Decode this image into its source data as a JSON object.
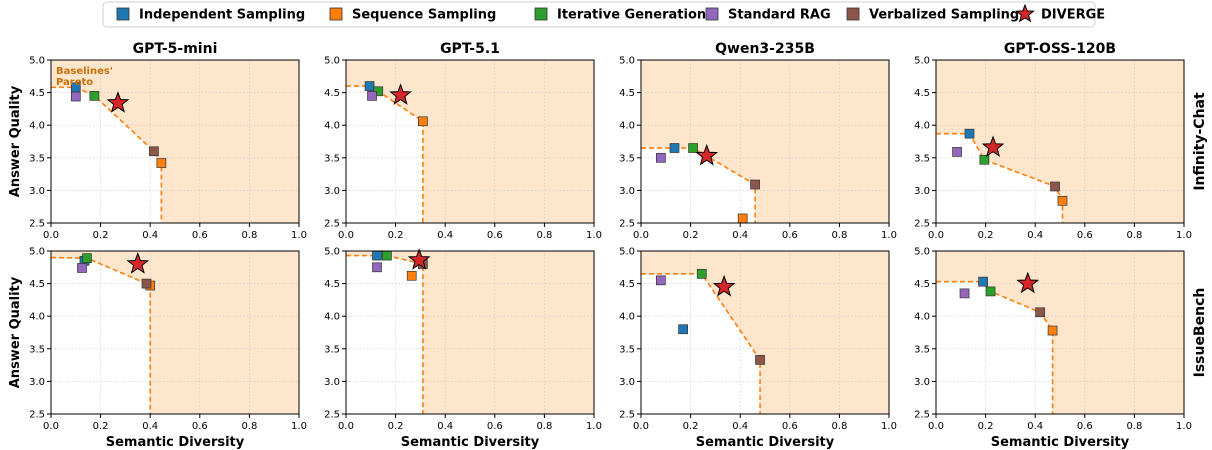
{
  "legend": {
    "items": [
      {
        "name": "Independent Sampling",
        "color": "#1f77b4",
        "marker": "square"
      },
      {
        "name": "Sequence Sampling",
        "color": "#ff7f0e",
        "marker": "square"
      },
      {
        "name": "Iterative Generation",
        "color": "#2ca02c",
        "marker": "square"
      },
      {
        "name": "Standard RAG",
        "color": "#9467bd",
        "marker": "square"
      },
      {
        "name": "Verbalized Sampling",
        "color": "#8c564b",
        "marker": "square"
      },
      {
        "name": "DIVERGE",
        "color": "#d62728",
        "marker": "star"
      }
    ]
  },
  "colors": {
    "pareto_line": "#ff7f0e",
    "pareto_fill": "#fde6cc",
    "grid": "#dddddd"
  },
  "columns": [
    "GPT-5-mini",
    "GPT-5.1",
    "Qwen3-235B",
    "GPT-OSS-120B"
  ],
  "rows": [
    "Infinity-Chat",
    "IssueBench"
  ],
  "xlabel": "Semantic Diversity",
  "ylabel": "Answer Quality",
  "annotation": "Baselines'\nPareto",
  "xticks": [
    "0.0",
    "0.2",
    "0.4",
    "0.6",
    "0.8",
    "1.0"
  ],
  "yticks": [
    "2.5",
    "3.0",
    "3.5",
    "4.0",
    "4.5",
    "5.0"
  ],
  "chart_data": [
    {
      "type": "scatter",
      "row": "Infinity-Chat",
      "model": "GPT-5-mini",
      "xlim": [
        0,
        1
      ],
      "ylim": [
        2.5,
        5.0
      ],
      "grid": true,
      "points": {
        "Independent Sampling": [
          0.1,
          4.58
        ],
        "Sequence Sampling": [
          0.445,
          3.42
        ],
        "Iterative Generation": [
          0.175,
          4.45
        ],
        "Standard RAG": [
          0.1,
          4.44
        ],
        "Verbalized Sampling": [
          0.415,
          3.6
        ],
        "DIVERGE": [
          0.27,
          4.34
        ]
      },
      "pareto": [
        [
          0,
          4.58
        ],
        [
          0.1,
          4.58
        ],
        [
          0.175,
          4.45
        ],
        [
          0.415,
          3.6
        ],
        [
          0.445,
          3.42
        ],
        [
          0.445,
          2.5
        ]
      ]
    },
    {
      "type": "scatter",
      "row": "Infinity-Chat",
      "model": "GPT-5.1",
      "xlim": [
        0,
        1
      ],
      "ylim": [
        2.5,
        5.0
      ],
      "grid": true,
      "points": {
        "Independent Sampling": [
          0.095,
          4.6
        ],
        "Sequence Sampling": [
          0.31,
          4.06
        ],
        "Iterative Generation": [
          0.13,
          4.52
        ],
        "Standard RAG": [
          0.105,
          4.45
        ],
        "Verbalized Sampling": null,
        "DIVERGE": [
          0.22,
          4.46
        ]
      },
      "pareto": [
        [
          0,
          4.6
        ],
        [
          0.095,
          4.6
        ],
        [
          0.13,
          4.52
        ],
        [
          0.31,
          4.06
        ],
        [
          0.31,
          2.5
        ]
      ]
    },
    {
      "type": "scatter",
      "row": "Infinity-Chat",
      "model": "Qwen3-235B",
      "xlim": [
        0,
        1
      ],
      "ylim": [
        2.5,
        5.0
      ],
      "grid": true,
      "points": {
        "Independent Sampling": [
          0.135,
          3.65
        ],
        "Sequence Sampling": [
          0.41,
          2.57
        ],
        "Iterative Generation": [
          0.21,
          3.65
        ],
        "Standard RAG": [
          0.08,
          3.5
        ],
        "Verbalized Sampling": [
          0.46,
          3.09
        ],
        "DIVERGE": [
          0.265,
          3.53
        ]
      },
      "pareto": [
        [
          0,
          3.65
        ],
        [
          0.21,
          3.65
        ],
        [
          0.46,
          3.09
        ],
        [
          0.46,
          2.5
        ]
      ]
    },
    {
      "type": "scatter",
      "row": "Infinity-Chat",
      "model": "GPT-OSS-120B",
      "xlim": [
        0,
        1
      ],
      "ylim": [
        2.5,
        5.0
      ],
      "grid": true,
      "points": {
        "Independent Sampling": [
          0.135,
          3.87
        ],
        "Sequence Sampling": [
          0.51,
          2.84
        ],
        "Iterative Generation": [
          0.195,
          3.47
        ],
        "Standard RAG": [
          0.085,
          3.59
        ],
        "Verbalized Sampling": [
          0.48,
          3.06
        ],
        "DIVERGE": [
          0.23,
          3.66
        ]
      },
      "pareto": [
        [
          0,
          3.87
        ],
        [
          0.135,
          3.87
        ],
        [
          0.195,
          3.47
        ],
        [
          0.48,
          3.06
        ],
        [
          0.51,
          2.84
        ],
        [
          0.51,
          2.5
        ]
      ]
    },
    {
      "type": "scatter",
      "row": "IssueBench",
      "model": "GPT-5-mini",
      "xlim": [
        0,
        1
      ],
      "ylim": [
        2.5,
        5.0
      ],
      "grid": true,
      "points": {
        "Independent Sampling": [
          0.135,
          4.85
        ],
        "Sequence Sampling": [
          0.4,
          4.47
        ],
        "Iterative Generation": [
          0.145,
          4.89
        ],
        "Standard RAG": [
          0.125,
          4.74
        ],
        "Verbalized Sampling": [
          0.385,
          4.5
        ],
        "DIVERGE": [
          0.35,
          4.8
        ]
      },
      "pareto": [
        [
          0,
          4.9
        ],
        [
          0.145,
          4.89
        ],
        [
          0.385,
          4.5
        ],
        [
          0.4,
          4.47
        ],
        [
          0.4,
          2.5
        ]
      ]
    },
    {
      "type": "scatter",
      "row": "IssueBench",
      "model": "GPT-5.1",
      "xlim": [
        0,
        1
      ],
      "ylim": [
        2.5,
        5.0
      ],
      "grid": true,
      "points": {
        "Independent Sampling": [
          0.125,
          4.93
        ],
        "Sequence Sampling": [
          0.265,
          4.62
        ],
        "Iterative Generation": [
          0.165,
          4.93
        ],
        "Standard RAG": [
          0.125,
          4.75
        ],
        "Verbalized Sampling": [
          0.31,
          4.8
        ],
        "DIVERGE": [
          0.295,
          4.86
        ]
      },
      "pareto": [
        [
          0,
          4.93
        ],
        [
          0.165,
          4.93
        ],
        [
          0.31,
          4.8
        ],
        [
          0.31,
          2.5
        ]
      ]
    },
    {
      "type": "scatter",
      "row": "IssueBench",
      "model": "Qwen3-235B",
      "xlim": [
        0,
        1
      ],
      "ylim": [
        2.5,
        5.0
      ],
      "grid": true,
      "points": {
        "Independent Sampling": [
          0.17,
          3.8
        ],
        "Sequence Sampling": null,
        "Iterative Generation": [
          0.245,
          4.65
        ],
        "Standard RAG": [
          0.08,
          4.55
        ],
        "Verbalized Sampling": [
          0.48,
          3.33
        ],
        "DIVERGE": [
          0.335,
          4.45
        ]
      },
      "pareto": [
        [
          0,
          4.65
        ],
        [
          0.245,
          4.65
        ],
        [
          0.48,
          3.33
        ],
        [
          0.48,
          2.5
        ]
      ]
    },
    {
      "type": "scatter",
      "row": "IssueBench",
      "model": "GPT-OSS-120B",
      "xlim": [
        0,
        1
      ],
      "ylim": [
        2.5,
        5.0
      ],
      "grid": true,
      "points": {
        "Independent Sampling": [
          0.19,
          4.53
        ],
        "Sequence Sampling": [
          0.47,
          3.78
        ],
        "Iterative Generation": [
          0.22,
          4.38
        ],
        "Standard RAG": [
          0.115,
          4.35
        ],
        "Verbalized Sampling": [
          0.42,
          4.06
        ],
        "DIVERGE": [
          0.37,
          4.5
        ]
      },
      "pareto": [
        [
          0,
          4.53
        ],
        [
          0.19,
          4.53
        ],
        [
          0.22,
          4.38
        ],
        [
          0.42,
          4.06
        ],
        [
          0.47,
          3.78
        ],
        [
          0.47,
          2.5
        ]
      ]
    }
  ]
}
